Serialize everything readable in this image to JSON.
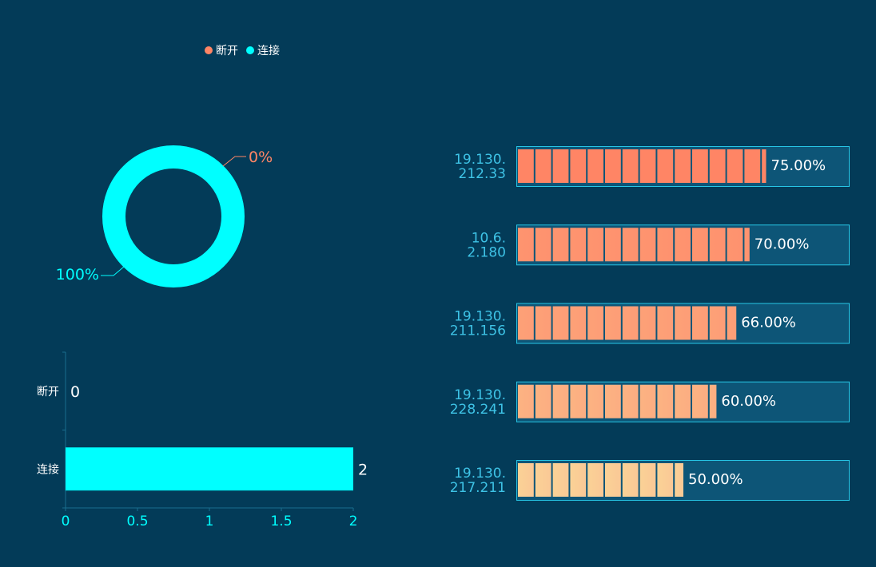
{
  "colors": {
    "background": "#033b58",
    "connected": "#00ffff",
    "disconnected": "#ff8565",
    "axis": "#1a6e8e",
    "panel": "#0d5577",
    "panel_border": "#27c6e6",
    "ip_text": "#3ec3e6"
  },
  "legend": [
    {
      "label": "断开",
      "color": "#ff8565"
    },
    {
      "label": "连接",
      "color": "#00ffff"
    }
  ],
  "chart_data": [
    {
      "type": "pie",
      "variant": "donut",
      "slices": [
        {
          "name": "断开",
          "value": 0,
          "label": "0%",
          "color": "#ff8565"
        },
        {
          "name": "连接",
          "value": 2,
          "label": "100%",
          "color": "#00ffff"
        }
      ]
    },
    {
      "type": "bar",
      "orientation": "horizontal",
      "categories": [
        "断开",
        "连接"
      ],
      "values": [
        0,
        2
      ],
      "xlim": [
        0,
        2
      ],
      "xticks": [
        "0",
        "0.5",
        "1",
        "1.5",
        "2"
      ]
    },
    {
      "type": "bar",
      "variant": "segmented-progress",
      "categories": [
        "19.130.\n212.33",
        "10.6.\n2.180",
        "19.130.\n211.156",
        "19.130.\n228.241",
        "19.130.\n217.211"
      ],
      "values": [
        75,
        70,
        66,
        60,
        50
      ],
      "labels": [
        "75.00%",
        "70.00%",
        "66.00%",
        "60.00%",
        "50.00%"
      ],
      "xlim": [
        0,
        100
      ]
    }
  ]
}
